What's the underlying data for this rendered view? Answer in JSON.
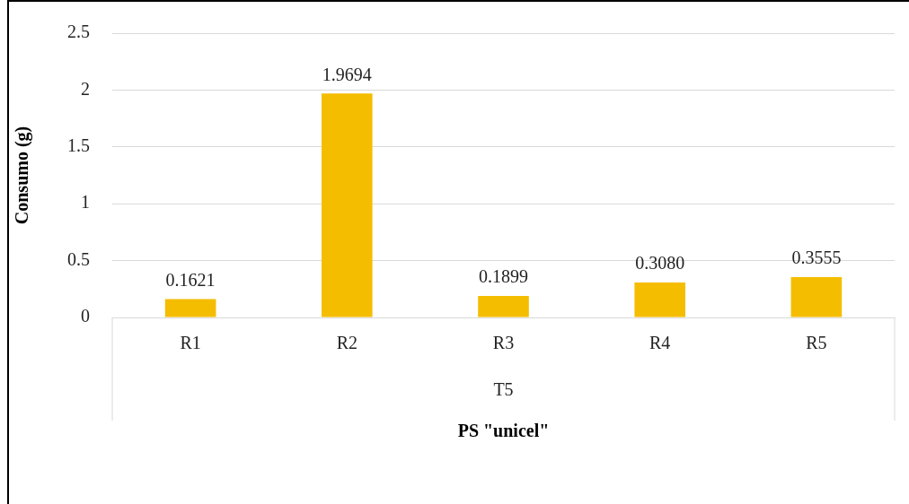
{
  "chart_data": {
    "type": "bar",
    "xlabel": "PS \"unicel\"",
    "ylabel": "Consumo (g)",
    "categories": [
      "R1",
      "R2",
      "R3",
      "R4",
      "R5"
    ],
    "series": [
      {
        "color": "#f5bd00",
        "values": [
          0.1621,
          1.9694,
          0.1899,
          0.308,
          0.3555
        ],
        "value_labels": [
          "0.1621",
          "1.9694",
          "0.1899",
          "0.3080",
          "0.3555"
        ]
      }
    ],
    "annotations": [
      "T5"
    ],
    "ylim": [
      0,
      2.5
    ],
    "yticks": [
      0,
      {
        "value": 0.5,
        "label": "0.5"
      },
      1,
      {
        "value": 1.5,
        "label": "1.5"
      },
      2,
      {
        "value": 2.5,
        "label": "2.5"
      }
    ],
    "grid": "y",
    "legend": false
  }
}
